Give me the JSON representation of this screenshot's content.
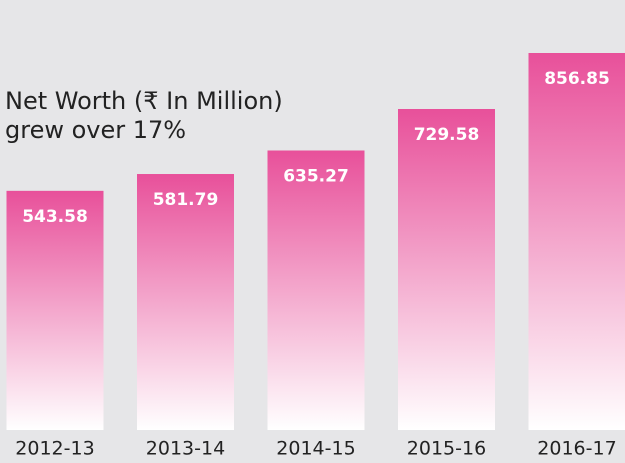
{
  "chart_data": {
    "type": "bar",
    "title": "Net Worth (₹ In Million)",
    "subtitle": "grew over 17%",
    "categories": [
      "2012-13",
      "2013-14",
      "2014-15",
      "2015-16",
      "2016-17"
    ],
    "values": [
      543.58,
      581.79,
      635.27,
      729.58,
      856.85
    ],
    "color": "#e8509a"
  }
}
